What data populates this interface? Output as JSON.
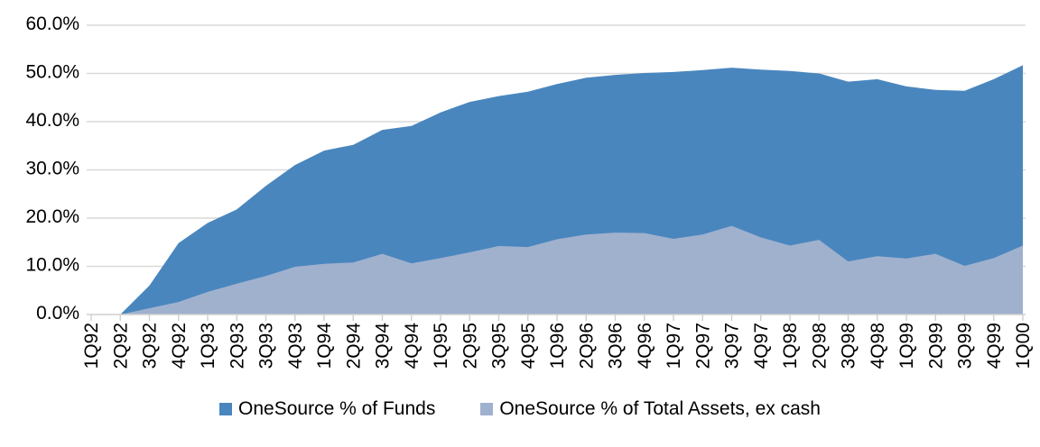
{
  "chart_data": {
    "type": "area",
    "overlapping": true,
    "title": "",
    "xlabel": "",
    "ylabel": "",
    "background_color": "#FFFFFF",
    "text_color": "#000000",
    "gridline_color": "#D9D9D9",
    "axis_line_color": "#CFCFCF",
    "grid": "horizontal",
    "legend_position": "bottom",
    "x_categories": [
      "1Q92",
      "2Q92",
      "3Q92",
      "4Q92",
      "1Q93",
      "2Q93",
      "3Q93",
      "4Q93",
      "1Q94",
      "2Q94",
      "3Q94",
      "4Q94",
      "1Q95",
      "2Q95",
      "3Q95",
      "4Q95",
      "1Q96",
      "2Q96",
      "3Q96",
      "4Q96",
      "1Q97",
      "2Q97",
      "3Q97",
      "4Q97",
      "1Q98",
      "2Q98",
      "3Q98",
      "4Q98",
      "1Q99",
      "2Q99",
      "3Q99",
      "4Q99",
      "1Q00"
    ],
    "y_axis": {
      "min": 0,
      "max": 60,
      "tick_step": 10,
      "tick_labels": [
        "0.0%",
        "10.0%",
        "20.0%",
        "30.0%",
        "40.0%",
        "50.0%",
        "60.0%"
      ]
    },
    "series": [
      {
        "name": "OneSource % of Funds",
        "color": "#4A86BE",
        "values": [
          0.0,
          0.0,
          6.0,
          14.8,
          19.0,
          21.8,
          26.7,
          31.0,
          34.0,
          35.2,
          38.3,
          39.1,
          41.9,
          44.1,
          45.3,
          46.2,
          47.8,
          49.1,
          49.7,
          50.1,
          50.3,
          50.7,
          51.2,
          50.8,
          50.5,
          50.0,
          48.3,
          48.8,
          47.3,
          46.6,
          46.4,
          48.8,
          51.7
        ]
      },
      {
        "name": "OneSource % of Total Assets, ex cash",
        "color": "#A0B1CE",
        "values": [
          0.0,
          0.0,
          1.3,
          2.6,
          4.7,
          6.4,
          8.0,
          9.9,
          10.5,
          10.8,
          12.6,
          10.6,
          11.7,
          12.9,
          14.2,
          14.0,
          15.6,
          16.6,
          17.0,
          16.9,
          15.7,
          16.6,
          18.4,
          16.0,
          14.3,
          15.5,
          11.0,
          12.1,
          11.6,
          12.6,
          10.1,
          11.7,
          14.3
        ]
      }
    ]
  }
}
